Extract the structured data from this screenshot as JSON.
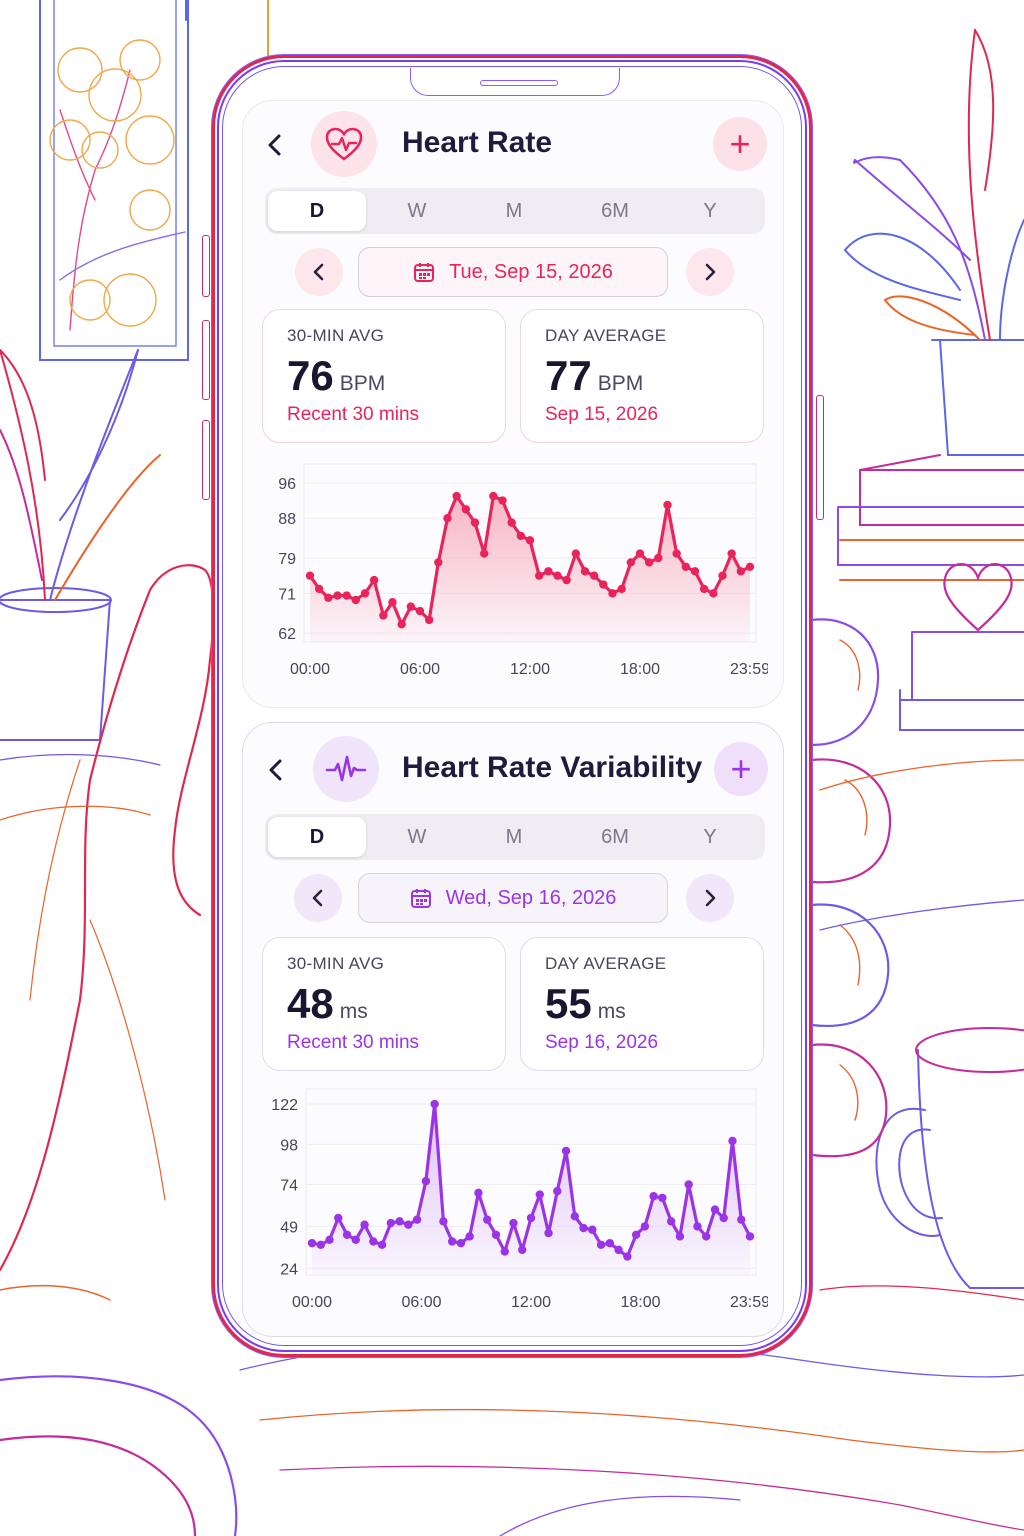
{
  "colors": {
    "heart_accent": "#e8245a",
    "hrv_accent": "#9b34e6",
    "hr_fill_top": "#f7a9bd",
    "hrv_fill_top": "#d9b7f5"
  },
  "heart_rate": {
    "icon": "heart-pulse-icon",
    "title": "Heart Rate",
    "add_label": "+",
    "tabs": [
      "D",
      "W",
      "M",
      "6M",
      "Y"
    ],
    "active_tab": "D",
    "date": "Tue, Sep 15, 2026",
    "stats": [
      {
        "label": "30-MIN AVG",
        "value": "76",
        "unit": "BPM",
        "sub": "Recent 30 mins"
      },
      {
        "label": "DAY AVERAGE",
        "value": "77",
        "unit": "BPM",
        "sub": "Sep 15, 2026"
      }
    ]
  },
  "hrv": {
    "icon": "waveform-icon",
    "title": "Heart Rate Variability",
    "add_label": "+",
    "tabs": [
      "D",
      "W",
      "M",
      "6M",
      "Y"
    ],
    "active_tab": "D",
    "date": "Wed, Sep 16, 2026",
    "stats": [
      {
        "label": "30-MIN AVG",
        "value": "48",
        "unit": "ms",
        "sub": "Recent 30 mins"
      },
      {
        "label": "DAY AVERAGE",
        "value": "55",
        "unit": "ms",
        "sub": "Sep 16, 2026"
      }
    ]
  },
  "chart_data": [
    {
      "type": "area",
      "title": "",
      "xlabel": "",
      "ylabel": "",
      "x_ticks": [
        "00:00",
        "06:00",
        "12:00",
        "18:00",
        "23:59"
      ],
      "y_ticks": [
        62,
        71,
        79,
        88,
        96
      ],
      "ylim": [
        60,
        98
      ],
      "grid": true,
      "series": [
        {
          "values": [
            75,
            72,
            70,
            70.5,
            70.5,
            69.5,
            71,
            74,
            66,
            69,
            64,
            68,
            67,
            65,
            78,
            88,
            93,
            90,
            87,
            80,
            93,
            92,
            87,
            84,
            83,
            75,
            76,
            75,
            74,
            80,
            76,
            75,
            73,
            71,
            72,
            78,
            80,
            78,
            79,
            91,
            80,
            77,
            76,
            72,
            71,
            75,
            80,
            76,
            77
          ]
        }
      ]
    },
    {
      "type": "area",
      "title": "",
      "xlabel": "",
      "ylabel": "",
      "x_ticks": [
        "00:00",
        "06:00",
        "12:00",
        "18:00",
        "23:59"
      ],
      "y_ticks": [
        24,
        49,
        74,
        98,
        122
      ],
      "ylim": [
        20,
        125
      ],
      "grid": true,
      "series": [
        {
          "values": [
            39,
            38,
            41,
            54,
            44,
            41,
            50,
            40,
            38,
            51,
            52,
            50,
            53,
            76,
            122,
            52,
            40,
            39,
            43,
            69,
            53,
            44,
            34,
            51,
            35,
            54,
            68,
            45,
            70,
            94,
            55,
            48,
            47,
            38,
            39,
            35,
            31,
            44,
            49,
            67,
            66,
            52,
            43,
            74,
            49,
            43,
            59,
            54,
            100,
            53,
            43
          ]
        }
      ]
    }
  ]
}
